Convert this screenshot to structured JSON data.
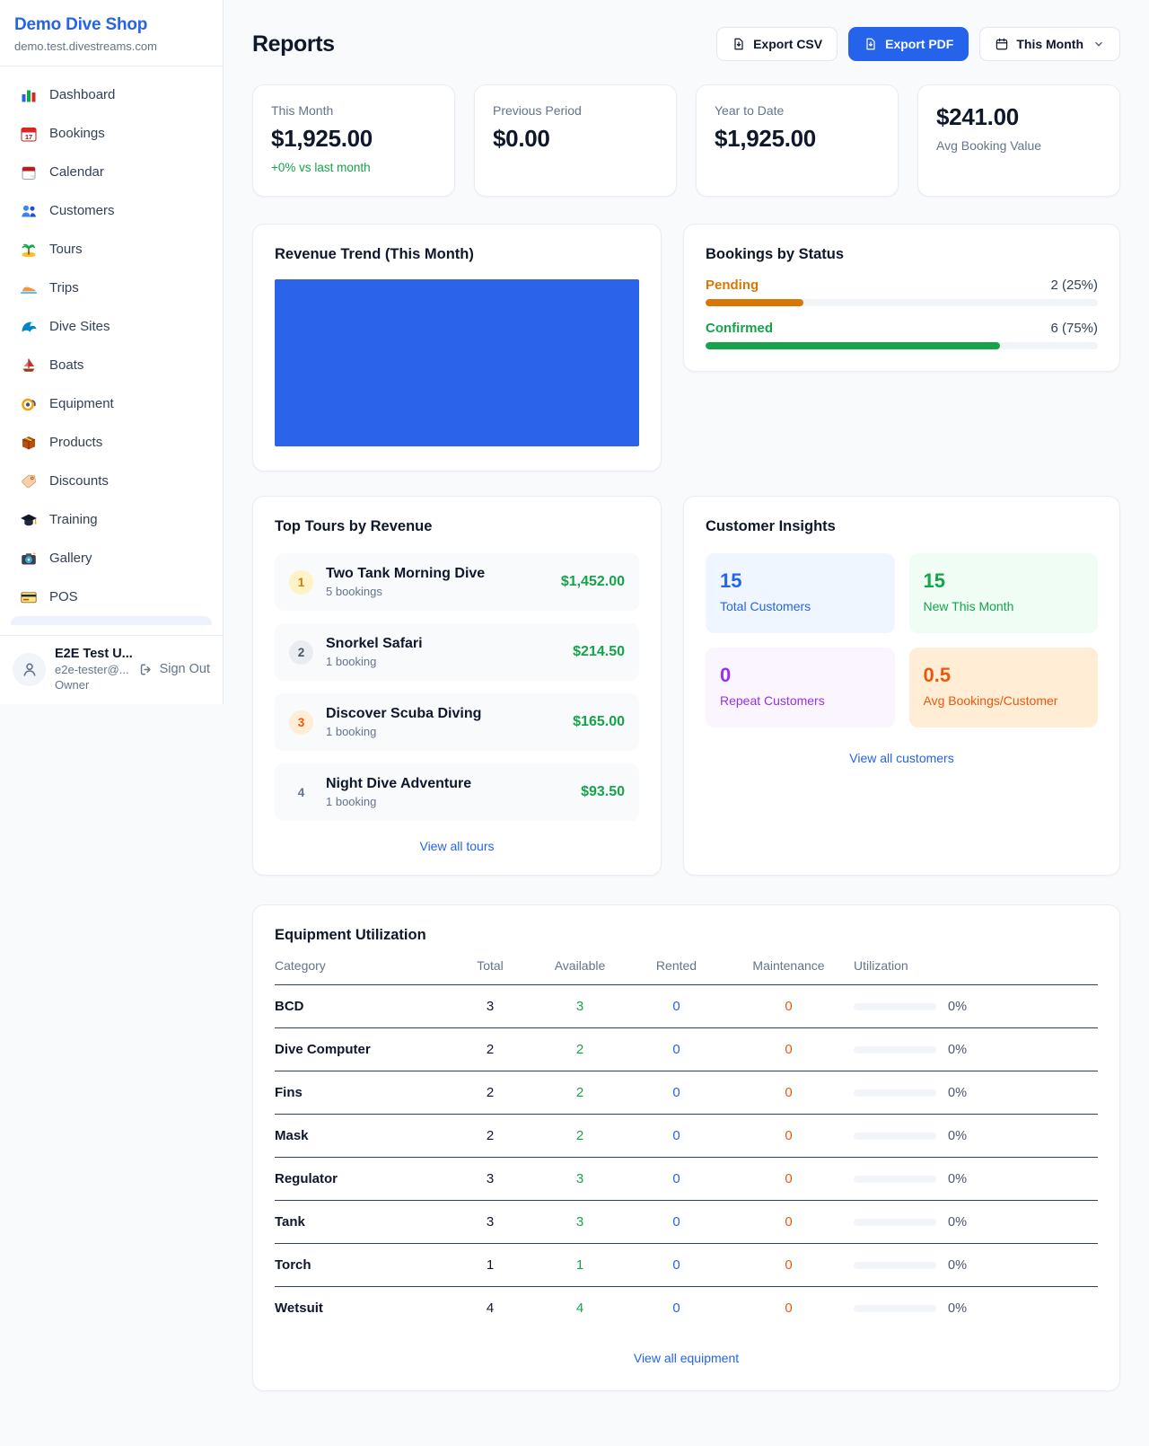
{
  "sidebar": {
    "shop_name": "Demo Dive Shop",
    "domain": "demo.test.divestreams.com",
    "items": [
      {
        "label": "Dashboard",
        "icon": "bar-chart-icon"
      },
      {
        "label": "Bookings",
        "icon": "calendar-date-icon"
      },
      {
        "label": "Calendar",
        "icon": "calendar-flip-icon"
      },
      {
        "label": "Customers",
        "icon": "users-icon"
      },
      {
        "label": "Tours",
        "icon": "island-icon"
      },
      {
        "label": "Trips",
        "icon": "speedboat-icon"
      },
      {
        "label": "Dive Sites",
        "icon": "wave-icon"
      },
      {
        "label": "Boats",
        "icon": "sailboat-icon"
      },
      {
        "label": "Equipment",
        "icon": "diving-mask-icon"
      },
      {
        "label": "Products",
        "icon": "package-icon"
      },
      {
        "label": "Discounts",
        "icon": "tag-icon"
      },
      {
        "label": "Training",
        "icon": "graduation-cap-icon"
      },
      {
        "label": "Gallery",
        "icon": "camera-icon"
      },
      {
        "label": "POS",
        "icon": "credit-card-icon"
      }
    ],
    "user": {
      "name": "E2E Test U...",
      "email": "e2e-tester@...",
      "role": "Owner",
      "sign_out_label": "Sign Out"
    }
  },
  "header": {
    "title": "Reports",
    "export_csv_label": "Export CSV",
    "export_pdf_label": "Export PDF",
    "period_label": "This Month"
  },
  "stats": [
    {
      "label": "This Month",
      "value": "$1,925.00",
      "delta": "+0% vs last month"
    },
    {
      "label": "Previous Period",
      "value": "$0.00"
    },
    {
      "label": "Year to Date",
      "value": "$1,925.00"
    },
    {
      "label": "Avg Booking Value",
      "value": "$241.00",
      "value_first": true
    }
  ],
  "revenue_trend": {
    "title": "Revenue Trend (This Month)",
    "bar_color": "#2b64ea",
    "fill_percent": 100
  },
  "bookings_by_status": {
    "title": "Bookings by Status",
    "rows": [
      {
        "label": "Pending",
        "value": "2 (25%)",
        "percent": 25,
        "color": "#d97706"
      },
      {
        "label": "Confirmed",
        "value": "6 (75%)",
        "percent": 75,
        "color": "#16a34a"
      }
    ]
  },
  "top_tours": {
    "title": "Top Tours by Revenue",
    "link_label": "View all tours",
    "rows": [
      {
        "rank": "1",
        "name": "Two Tank Morning Dive",
        "bookings": "5 bookings",
        "amount": "$1,452.00",
        "badge_bg": "#fef3c7",
        "badge_color": "#d97706"
      },
      {
        "rank": "2",
        "name": "Snorkel Safari",
        "bookings": "1 booking",
        "amount": "$214.50",
        "badge_bg": "#e9edf2",
        "badge_color": "#475569"
      },
      {
        "rank": "3",
        "name": "Discover Scuba Diving",
        "bookings": "1 booking",
        "amount": "$165.00",
        "badge_bg": "#ffedd5",
        "badge_color": "#ea580c"
      },
      {
        "rank": "4",
        "name": "Night Dive Adventure",
        "bookings": "1 booking",
        "amount": "$93.50",
        "badge_bg": "transparent",
        "badge_color": "#64748b"
      }
    ]
  },
  "customer_insights": {
    "title": "Customer Insights",
    "link_label": "View all customers",
    "tiles": [
      {
        "value": "15",
        "label": "Total Customers",
        "color": "#2563eb",
        "bg": "#eff6ff"
      },
      {
        "value": "15",
        "label": "New This Month",
        "color": "#16a34a",
        "bg": "#f0fdf4"
      },
      {
        "value": "0",
        "label": "Repeat Customers",
        "color": "#9333ea",
        "bg": "#faf5ff"
      },
      {
        "value": "0.5",
        "label": "Avg Bookings/Customer",
        "color": "#ea580c",
        "bg": "#ffedd5"
      }
    ]
  },
  "equipment": {
    "title": "Equipment Utilization",
    "link_label": "View all equipment",
    "columns": [
      "Category",
      "Total",
      "Available",
      "Rented",
      "Maintenance",
      "Utilization"
    ],
    "value_colors": {
      "available": "#16a34a",
      "rented": "#2563eb",
      "maintenance": "#ea580c"
    },
    "rows": [
      {
        "category": "BCD",
        "total": "3",
        "available": "3",
        "rented": "0",
        "maintenance": "0",
        "utilization": "0%"
      },
      {
        "category": "Dive Computer",
        "total": "2",
        "available": "2",
        "rented": "0",
        "maintenance": "0",
        "utilization": "0%"
      },
      {
        "category": "Fins",
        "total": "2",
        "available": "2",
        "rented": "0",
        "maintenance": "0",
        "utilization": "0%"
      },
      {
        "category": "Mask",
        "total": "2",
        "available": "2",
        "rented": "0",
        "maintenance": "0",
        "utilization": "0%"
      },
      {
        "category": "Regulator",
        "total": "3",
        "available": "3",
        "rented": "0",
        "maintenance": "0",
        "utilization": "0%"
      },
      {
        "category": "Tank",
        "total": "3",
        "available": "3",
        "rented": "0",
        "maintenance": "0",
        "utilization": "0%"
      },
      {
        "category": "Torch",
        "total": "1",
        "available": "1",
        "rented": "0",
        "maintenance": "0",
        "utilization": "0%"
      },
      {
        "category": "Wetsuit",
        "total": "4",
        "available": "4",
        "rented": "0",
        "maintenance": "0",
        "utilization": "0%"
      }
    ]
  }
}
